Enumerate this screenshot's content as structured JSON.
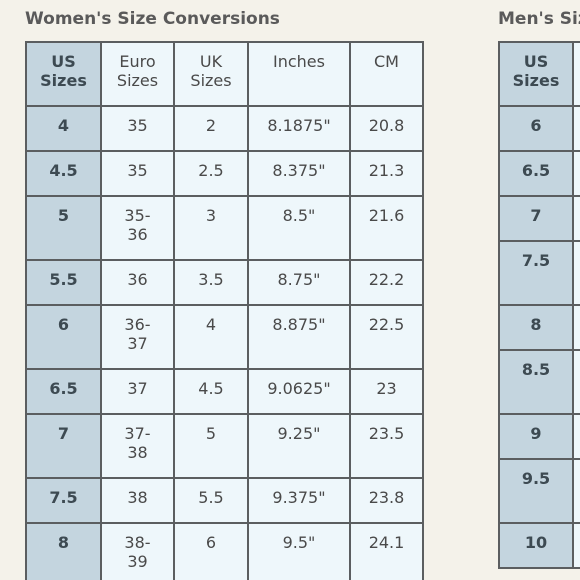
{
  "women": {
    "title": "Women's Size Conversions",
    "header": [
      "US\nSizes",
      "Euro\nSizes",
      "UK\nSizes",
      "Inches",
      "CM"
    ],
    "rows": [
      [
        "4",
        "35",
        "2",
        "8.1875\"",
        "20.8"
      ],
      [
        "4.5",
        "35",
        "2.5",
        "8.375\"",
        "21.3"
      ],
      [
        "5",
        "35-\n36",
        "3",
        "8.5\"",
        "21.6"
      ],
      [
        "5.5",
        "36",
        "3.5",
        "8.75\"",
        "22.2"
      ],
      [
        "6",
        "36-\n37",
        "4",
        "8.875\"",
        "22.5"
      ],
      [
        "6.5",
        "37",
        "4.5",
        "9.0625\"",
        "23"
      ],
      [
        "7",
        "37-\n38",
        "5",
        "9.25\"",
        "23.5"
      ],
      [
        "7.5",
        "38",
        "5.5",
        "9.375\"",
        "23.8"
      ],
      [
        "8",
        "38-\n39",
        "6",
        "9.5\"",
        "24.1"
      ]
    ]
  },
  "men": {
    "title": "Men's Size",
    "header": [
      "US\nSizes"
    ],
    "rows": [
      [
        "6"
      ],
      [
        "6.5"
      ],
      [
        "7"
      ],
      [
        "7.5"
      ],
      [
        "8"
      ],
      [
        "8.5"
      ],
      [
        "9"
      ],
      [
        "9.5"
      ],
      [
        "10"
      ]
    ]
  }
}
